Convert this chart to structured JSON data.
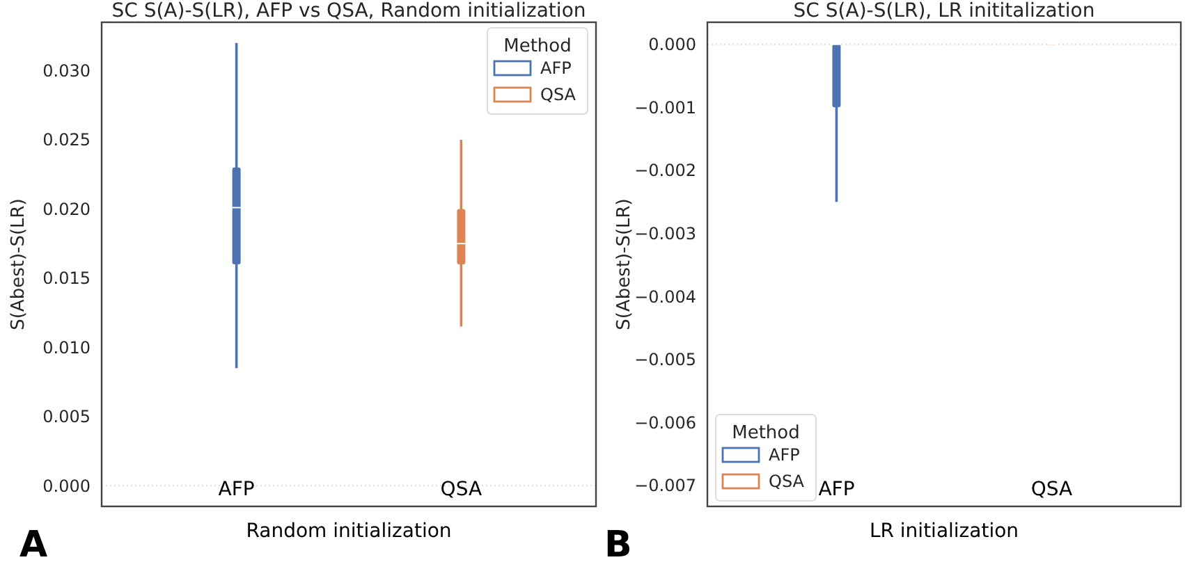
{
  "chart_data": [
    {
      "type": "box",
      "title": "SC S(A)-S(LR), AFP vs QSA, Random initialization",
      "xlabel": "Random initialization",
      "ylabel": "S(Abest)-S(LR)",
      "categories": [
        "AFP",
        "QSA"
      ],
      "ylim": [
        -0.0015,
        0.0335
      ],
      "yticks": [
        {
          "value": 0,
          "label": "0.000"
        },
        {
          "value": 0.005,
          "label": "0.005"
        },
        {
          "value": 0.01,
          "label": "0.010"
        },
        {
          "value": 0.015,
          "label": "0.015"
        },
        {
          "value": 0.02,
          "label": "0.020"
        },
        {
          "value": 0.025,
          "label": "0.025"
        },
        {
          "value": 0.03,
          "label": "0.030"
        }
      ],
      "legend_title": "Method",
      "legend": "top right",
      "grid": false,
      "ref_lines": [
        {
          "axis": "y",
          "value": 0,
          "color": "#dddddd",
          "line_style": "dotted"
        }
      ],
      "annotations": [
        "A"
      ],
      "series": [
        {
          "name": "AFP",
          "color": "#4c72b0",
          "boxes": [
            {
              "low": 0.0085,
              "q1": 0.016,
              "median": 0.0201,
              "q3": 0.023,
              "high": 0.032
            },
            null
          ]
        },
        {
          "name": "QSA",
          "color": "#dd8452",
          "boxes": [
            null,
            {
              "low": 0.0115,
              "q1": 0.016,
              "median": 0.0175,
              "q3": 0.02,
              "high": 0.025
            }
          ]
        }
      ]
    },
    {
      "type": "box",
      "title": "SC S(A)-S(LR), LR inititalization",
      "xlabel": "LR initialization",
      "ylabel": "S(Abest)-S(LR)",
      "categories": [
        "AFP",
        "QSA"
      ],
      "ylim": [
        -0.00733,
        0.00035
      ],
      "yticks": [
        {
          "value": 0,
          "label": "0.000"
        },
        {
          "value": -0.001,
          "label": "−0.001"
        },
        {
          "value": -0.002,
          "label": "−0.002"
        },
        {
          "value": -0.003,
          "label": "−0.003"
        },
        {
          "value": -0.004,
          "label": "−0.004"
        },
        {
          "value": -0.005,
          "label": "−0.005"
        },
        {
          "value": -0.006,
          "label": "−0.006"
        },
        {
          "value": -0.007,
          "label": "−0.007"
        }
      ],
      "legend_title": "Method",
      "legend": "bottom left",
      "grid": false,
      "ref_lines": [
        {
          "axis": "y",
          "value": 0,
          "color": "#dddddd",
          "line_style": "dotted"
        }
      ],
      "annotations": [
        "B"
      ],
      "series": [
        {
          "name": "AFP",
          "color": "#4c72b0",
          "boxes": [
            {
              "low": -0.0025,
              "q1": -0.001,
              "median": 0,
              "q3": 0,
              "high": 0
            },
            null
          ]
        },
        {
          "name": "QSA",
          "color": "#dd8452",
          "boxes": [
            null,
            {
              "low": 0,
              "q1": 0,
              "median": 0,
              "q3": 0,
              "high": 0
            }
          ]
        }
      ]
    }
  ]
}
